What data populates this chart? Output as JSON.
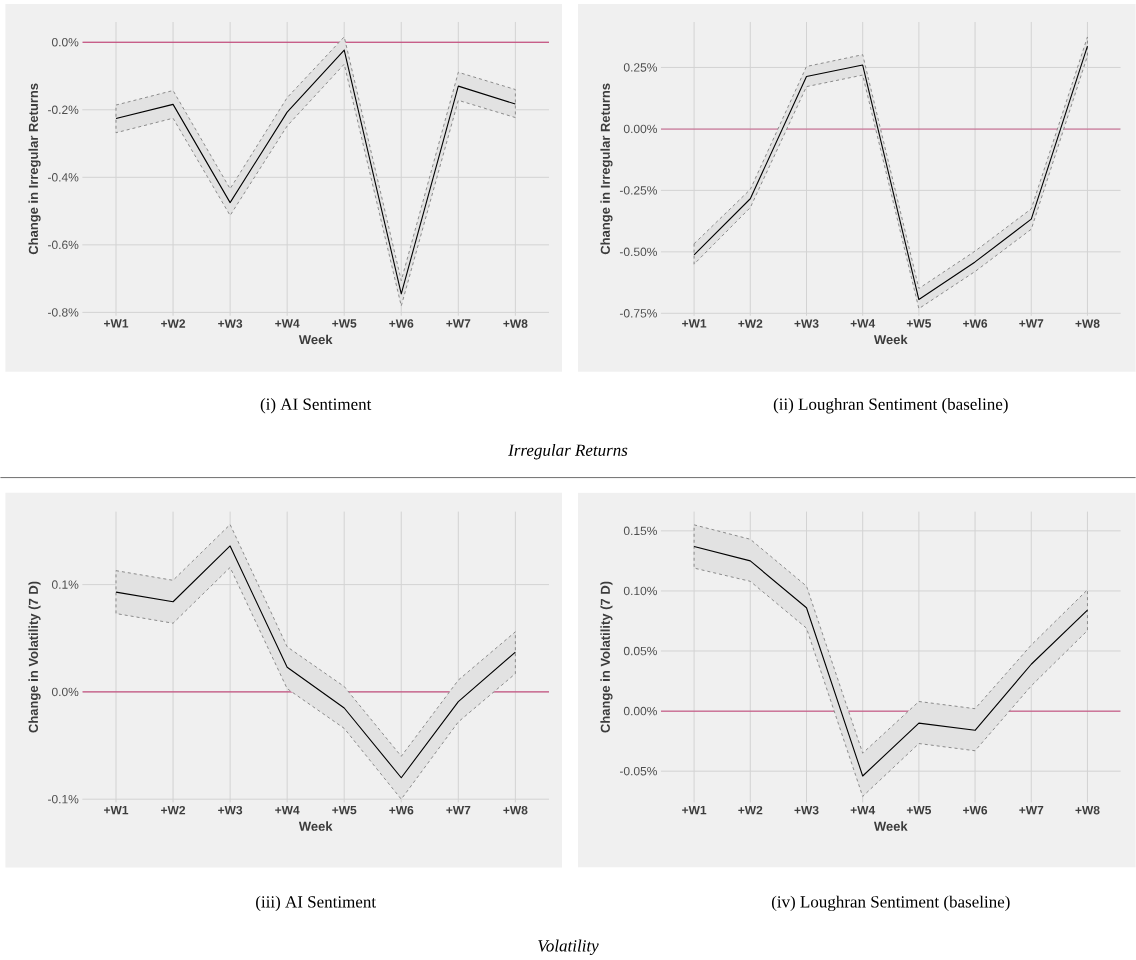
{
  "chart_data": [
    {
      "type": "line",
      "title": "(i) AI Sentiment",
      "xlabel": "Week",
      "ylabel": "Change in Irregular Returns",
      "categories": [
        "+W1",
        "+W2",
        "+W3",
        "+W4",
        "+W5",
        "+W6",
        "+W7",
        "+W8"
      ],
      "series": [
        {
          "color": "#000000",
          "values": [
            -0.226,
            -0.184,
            -0.475,
            -0.207,
            -0.023,
            -0.745,
            -0.13,
            -0.183
          ],
          "lower": [
            -0.268,
            -0.225,
            -0.513,
            -0.248,
            -0.065,
            -0.781,
            -0.172,
            -0.223
          ],
          "upper": [
            -0.186,
            -0.143,
            -0.434,
            -0.164,
            0.016,
            -0.706,
            -0.089,
            -0.14
          ]
        }
      ],
      "ylim": [
        -0.81,
        0.06
      ],
      "yticks": [
        {
          "value": 0,
          "label": "0.0%"
        },
        {
          "value": -0.2,
          "label": "-0.2%"
        },
        {
          "value": -0.4,
          "label": "-0.4%"
        },
        {
          "value": -0.6,
          "label": "-0.6%"
        },
        {
          "value": -0.8,
          "label": "-0.8%"
        }
      ],
      "ref_lines": [
        {
          "axis": "y",
          "value": 0,
          "color": "#c0306a"
        }
      ],
      "grid": true,
      "line_style": "solid",
      "annotations": [
        "Irregular Returns"
      ]
    },
    {
      "type": "line",
      "title": "(ii) Loughran Sentiment (baseline)",
      "xlabel": "Week",
      "ylabel": "Change in Irregular Returns",
      "categories": [
        "+W1",
        "+W2",
        "+W3",
        "+W4",
        "+W5",
        "+W6",
        "+W7",
        "+W8"
      ],
      "series": [
        {
          "color": "#000000",
          "values": [
            -0.512,
            -0.284,
            0.213,
            0.26,
            -0.694,
            -0.541,
            -0.367,
            0.337
          ],
          "lower": [
            -0.55,
            -0.32,
            0.172,
            0.219,
            -0.731,
            -0.58,
            -0.408,
            0.297
          ],
          "upper": [
            -0.467,
            -0.246,
            0.254,
            0.302,
            -0.649,
            -0.497,
            -0.325,
            0.374
          ]
        }
      ],
      "ylim": [
        -0.76,
        0.435
      ],
      "yticks": [
        {
          "value": 0.25,
          "label": "0.25%"
        },
        {
          "value": 0,
          "label": "0.00%"
        },
        {
          "value": -0.25,
          "label": "-0.25%"
        },
        {
          "value": -0.5,
          "label": "-0.50%"
        },
        {
          "value": -0.75,
          "label": "-0.75%"
        }
      ],
      "ref_lines": [
        {
          "axis": "y",
          "value": 0,
          "color": "#c0306a"
        }
      ],
      "grid": true,
      "line_style": "solid"
    },
    {
      "type": "line",
      "title": "(iii) AI Sentiment",
      "xlabel": "Week",
      "ylabel": "Change in Volatility (7 D)",
      "categories": [
        "+W1",
        "+W2",
        "+W3",
        "+W4",
        "+W5",
        "+W6",
        "+W7",
        "+W8"
      ],
      "series": [
        {
          "color": "#000000",
          "values": [
            0.093,
            0.084,
            0.136,
            0.023,
            -0.015,
            -0.08,
            -0.009,
            0.037
          ],
          "lower": [
            0.073,
            0.064,
            0.116,
            0.003,
            -0.034,
            -0.1,
            -0.028,
            0.017
          ],
          "upper": [
            0.113,
            0.104,
            0.156,
            0.042,
            0.005,
            -0.06,
            0.011,
            0.056
          ]
        }
      ],
      "ylim": [
        -0.103,
        0.168
      ],
      "yticks": [
        {
          "value": 0.1,
          "label": "0.1%"
        },
        {
          "value": 0,
          "label": "0.0%"
        },
        {
          "value": -0.1,
          "label": "-0.1%"
        }
      ],
      "ref_lines": [
        {
          "axis": "y",
          "value": 0,
          "color": "#c0306a"
        }
      ],
      "grid": true,
      "line_style": "solid",
      "annotations": [
        "Volatility"
      ]
    },
    {
      "type": "line",
      "title": "(iv) Loughran Sentiment (baseline)",
      "xlabel": "Week",
      "ylabel": "Change in Volatility (7 D)",
      "categories": [
        "+W1",
        "+W2",
        "+W3",
        "+W4",
        "+W5",
        "+W6",
        "+W7",
        "+W8"
      ],
      "series": [
        {
          "color": "#000000",
          "values": [
            0.137,
            0.125,
            0.086,
            -0.054,
            -0.01,
            -0.016,
            0.039,
            0.084
          ],
          "lower": [
            0.119,
            0.108,
            0.069,
            -0.071,
            -0.027,
            -0.033,
            0.021,
            0.067
          ],
          "upper": [
            0.155,
            0.143,
            0.104,
            -0.035,
            0.008,
            0.002,
            0.055,
            0.101
          ]
        }
      ],
      "ylim": [
        -0.076,
        0.166
      ],
      "yticks": [
        {
          "value": 0.15,
          "label": "0.15%"
        },
        {
          "value": 0.1,
          "label": "0.10%"
        },
        {
          "value": 0.05,
          "label": "0.05%"
        },
        {
          "value": 0,
          "label": "0.00%"
        },
        {
          "value": -0.05,
          "label": "-0.05%"
        }
      ],
      "ref_lines": [
        {
          "axis": "y",
          "value": 0,
          "color": "#c0306a"
        }
      ],
      "grid": true,
      "line_style": "solid"
    }
  ]
}
